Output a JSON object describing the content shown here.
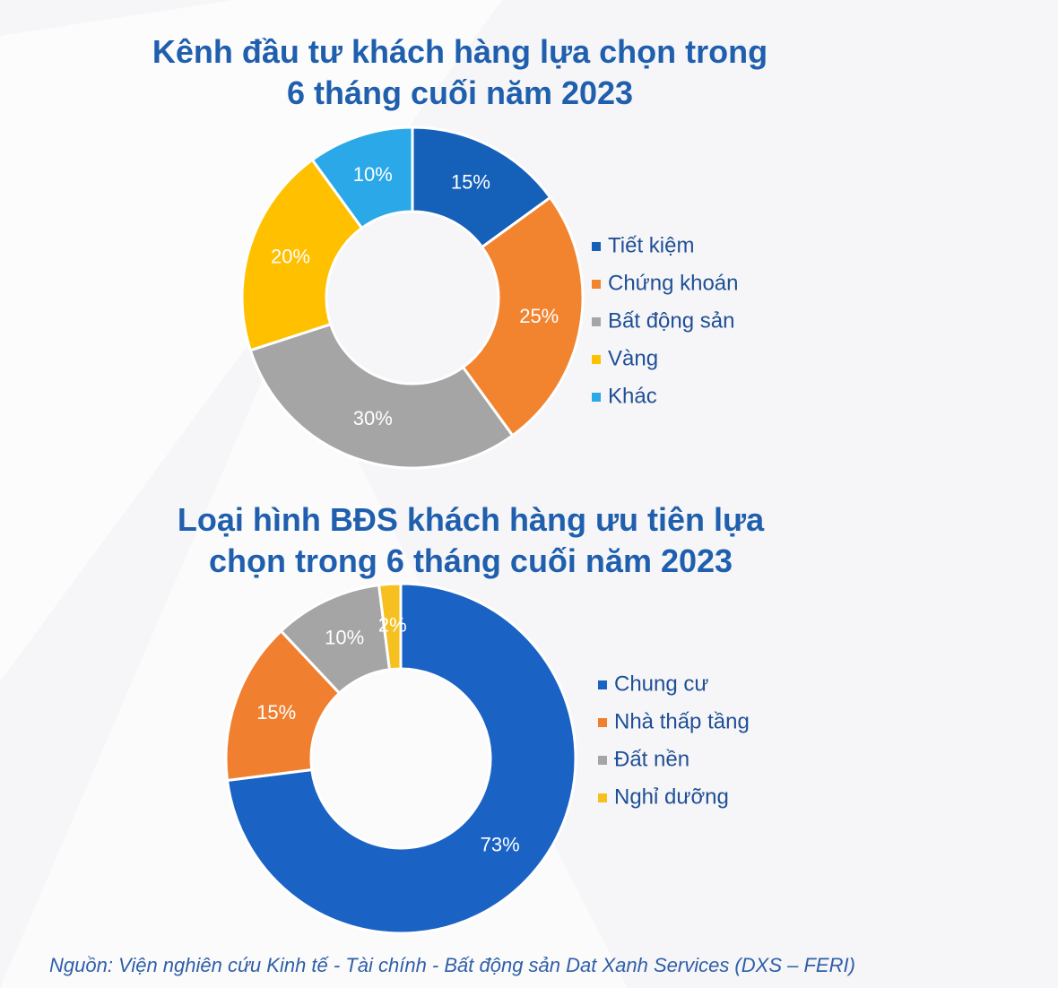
{
  "chart_data": [
    {
      "type": "donut",
      "title": "Kênh đầu tư khách hàng lựa chọn trong 6 tháng cuối năm 2023",
      "categories": [
        "Tiết kiệm",
        "Chứng khoán",
        "Bất động sản",
        "Vàng",
        "Khác"
      ],
      "values": [
        15,
        25,
        30,
        20,
        10
      ],
      "value_labels": [
        "15%",
        "25%",
        "30%",
        "20%",
        "10%"
      ],
      "colors": [
        "#1560b8",
        "#f28430",
        "#a5a5a5",
        "#ffc000",
        "#2aa8e8"
      ]
    },
    {
      "type": "donut",
      "title": "Loại hình BĐS khách hàng ưu tiên lựa chọn trong 6 tháng cuối năm 2023",
      "categories": [
        "Chung cư",
        "Nhà thấp tầng",
        "Đất nền",
        "Nghỉ dưỡng"
      ],
      "values": [
        73,
        15,
        10,
        2
      ],
      "value_labels": [
        "73%",
        "15%",
        "10%",
        "2%"
      ],
      "colors": [
        "#1a63c4",
        "#f08030",
        "#a5a5a5",
        "#f5c020"
      ]
    }
  ],
  "source": "Nguồn: Viện nghiên cứu Kinh tế - Tài chính - Bất động sản Dat Xanh Services (DXS – FERI)"
}
